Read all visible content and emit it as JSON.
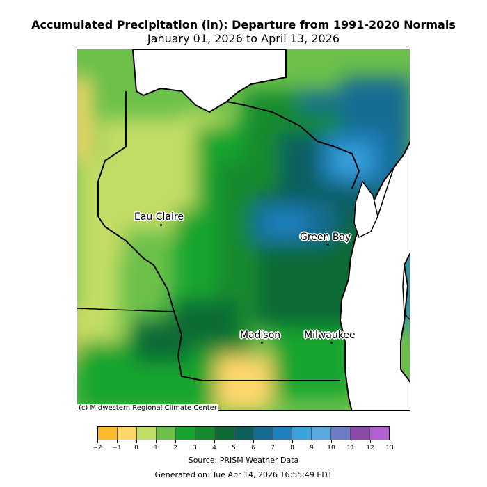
{
  "header": {
    "title": "Accumulated Precipitation (in): Departure from 1991-2020 Normals",
    "subtitle": "January 01, 2026 to April 13, 2026"
  },
  "map": {
    "region": "Wisconsin",
    "cities": [
      {
        "name": "Eau Claire"
      },
      {
        "name": "Green Bay"
      },
      {
        "name": "Madison"
      },
      {
        "name": "Milwaukee"
      }
    ],
    "copyright": "(c) Midwestern Regional Climate Center"
  },
  "legend": {
    "ticks": [
      "−2",
      "−1",
      "0",
      "1",
      "2",
      "3",
      "4",
      "5",
      "6",
      "7",
      "8",
      "9",
      "10",
      "11",
      "12",
      "13"
    ],
    "colors": [
      "#fdb92f",
      "#fed76a",
      "#c2dd65",
      "#6cc04a",
      "#18a52f",
      "#168a2f",
      "#0f6a35",
      "#0f5f5f",
      "#156c93",
      "#1f80bd",
      "#3ba2db",
      "#5aa8e0",
      "#6e7cc8",
      "#8e4aa8",
      "#b060d0"
    ]
  },
  "footer": {
    "source": "Source: PRISM Weather Data",
    "generated": "Generated on: Tue Apr 14, 2026 16:55:49 EDT"
  }
}
